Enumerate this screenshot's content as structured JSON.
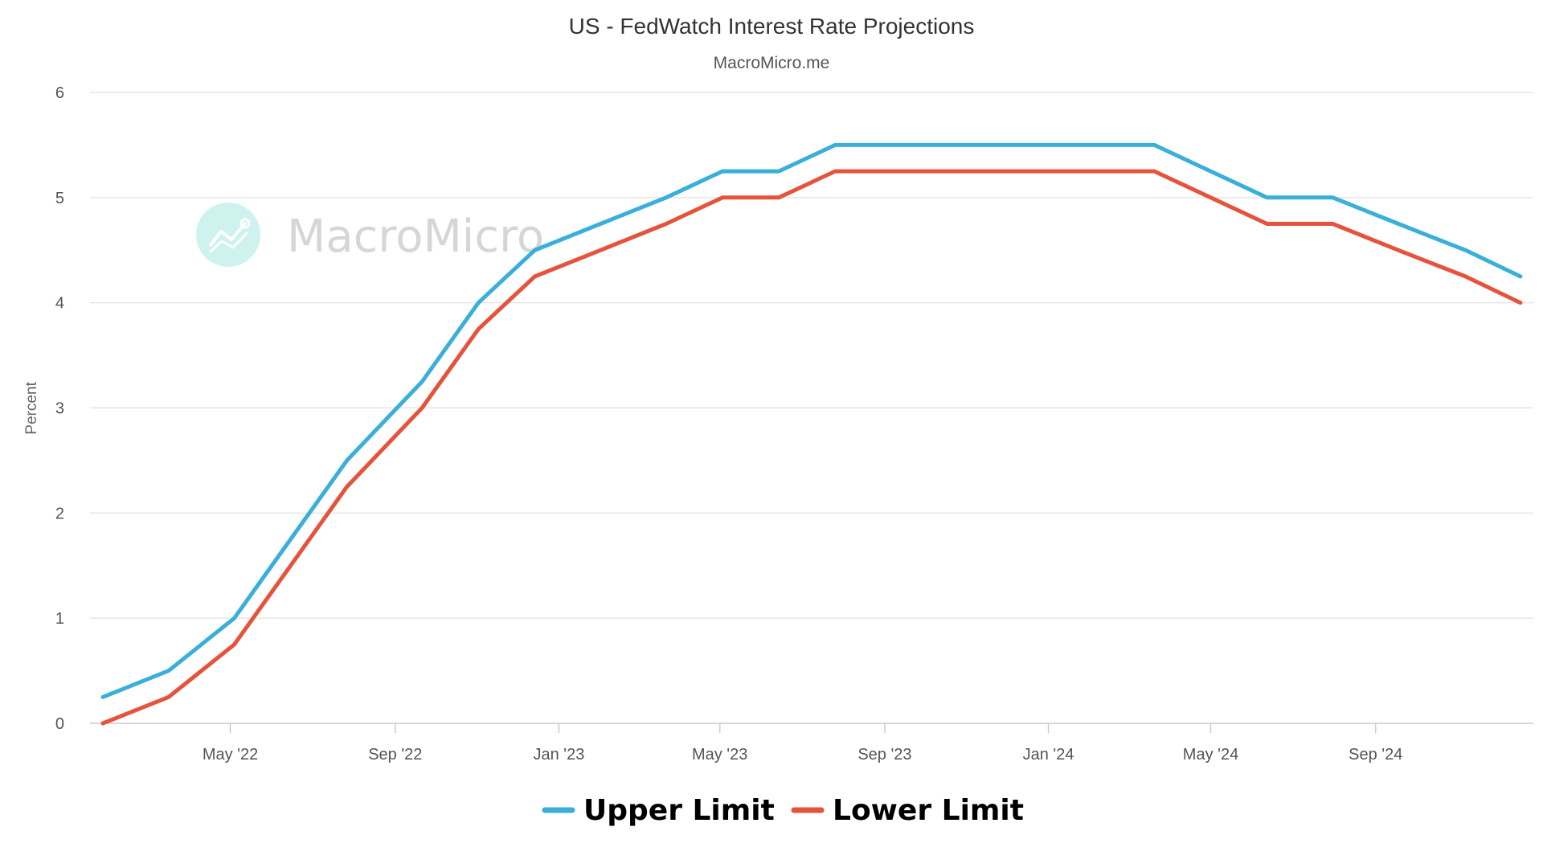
{
  "chart_data": {
    "type": "line",
    "title": "US - FedWatch Interest Rate Projections",
    "subtitle": "MacroMicro.me",
    "ylabel": "Percent",
    "xlabel": "",
    "ylim": [
      0,
      6
    ],
    "yticks": [
      0,
      1,
      2,
      3,
      4,
      5,
      6
    ],
    "xlim": [
      "2022-01-26",
      "2024-12-18"
    ],
    "xticks": [
      {
        "date": "2022-05-01",
        "label": "May '22"
      },
      {
        "date": "2022-09-01",
        "label": "Sep '22"
      },
      {
        "date": "2023-01-01",
        "label": "Jan '23"
      },
      {
        "date": "2023-05-01",
        "label": "May '23"
      },
      {
        "date": "2023-09-01",
        "label": "Sep '23"
      },
      {
        "date": "2024-01-01",
        "label": "Jan '24"
      },
      {
        "date": "2024-05-01",
        "label": "May '24"
      },
      {
        "date": "2024-09-01",
        "label": "Sep '24"
      }
    ],
    "grid": true,
    "legend_position": "bottom-center",
    "x": [
      "2022-01-26",
      "2022-03-16",
      "2022-05-04",
      "2022-06-15",
      "2022-07-27",
      "2022-09-21",
      "2022-11-02",
      "2022-12-14",
      "2023-02-01",
      "2023-03-22",
      "2023-05-03",
      "2023-06-14",
      "2023-07-26",
      "2023-09-20",
      "2023-11-01",
      "2023-12-13",
      "2024-01-31",
      "2024-03-20",
      "2024-05-01",
      "2024-06-12",
      "2024-07-31",
      "2024-09-18",
      "2024-11-07",
      "2024-12-18"
    ],
    "series": [
      {
        "name": "Upper Limit",
        "color": "#3aafd9",
        "values": [
          0.25,
          0.5,
          1.0,
          1.75,
          2.5,
          3.25,
          4.0,
          4.5,
          4.75,
          5.0,
          5.25,
          5.25,
          5.5,
          5.5,
          5.5,
          5.5,
          5.5,
          5.5,
          5.25,
          5.0,
          5.0,
          4.75,
          4.5,
          4.25
        ]
      },
      {
        "name": "Lower Limit",
        "color": "#e5533d",
        "values": [
          0.0,
          0.25,
          0.75,
          1.5,
          2.25,
          3.0,
          3.75,
          4.25,
          4.5,
          4.75,
          5.0,
          5.0,
          5.25,
          5.25,
          5.25,
          5.25,
          5.25,
          5.25,
          5.0,
          4.75,
          4.75,
          4.5,
          4.25,
          4.0
        ]
      }
    ]
  },
  "watermark": {
    "text": "MacroMicro",
    "icon": "macromicro-logo-icon",
    "icon_color": "#bfeee7"
  },
  "colors": {
    "grid": "#e6e6e6",
    "axis": "#cccccc",
    "text": "#333333"
  }
}
